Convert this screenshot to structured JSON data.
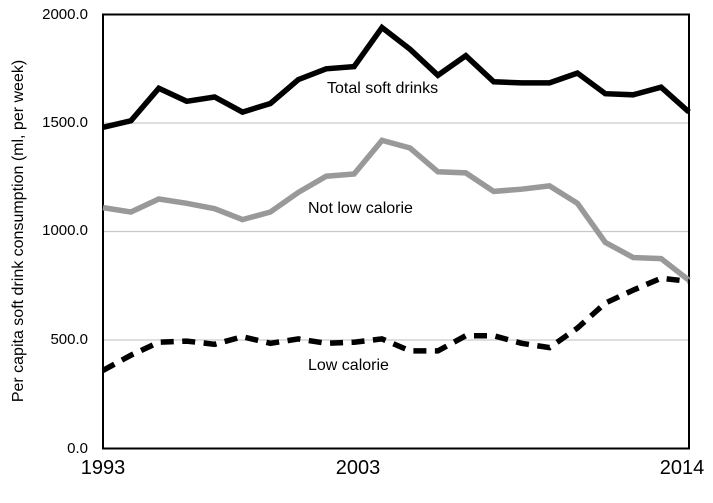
{
  "chart_data": {
    "type": "line",
    "title": "",
    "xlabel": "",
    "ylabel": "Per capita soft drink consumption (ml, per week)",
    "ylim": [
      0,
      2000
    ],
    "grid": "horizontal-gridlines",
    "legend_position": "inline-labels",
    "x": [
      1993,
      1994,
      1995,
      1996,
      1997,
      1998,
      1999,
      2000,
      2001,
      2002,
      2003,
      2004,
      2005,
      2006,
      2007,
      2008,
      2009,
      2010,
      2011,
      2012,
      2013,
      2014
    ],
    "xtick_labels": [
      "1993",
      "2003",
      "2014"
    ],
    "ytick_values": [
      0,
      500,
      1000,
      1500,
      2000
    ],
    "ytick_labels": [
      "0.0",
      "500.0",
      "1000.0",
      "1500.0",
      "2000.0"
    ],
    "series": [
      {
        "name": "Total soft drinks",
        "color": "#000000",
        "line_style": "solid",
        "values": [
          1480,
          1510,
          1660,
          1600,
          1620,
          1550,
          1590,
          1700,
          1750,
          1760,
          1940,
          1840,
          1720,
          1810,
          1690,
          1685,
          1685,
          1730,
          1635,
          1630,
          1665,
          1550
        ]
      },
      {
        "name": "Not low calorie",
        "color": "#999999",
        "line_style": "solid",
        "values": [
          1110,
          1090,
          1150,
          1130,
          1105,
          1055,
          1090,
          1180,
          1255,
          1265,
          1420,
          1385,
          1275,
          1270,
          1185,
          1195,
          1210,
          1130,
          950,
          880,
          875,
          775
        ]
      },
      {
        "name": "Low calorie",
        "color": "#000000",
        "line_style": "dashed",
        "values": [
          360,
          430,
          490,
          495,
          480,
          515,
          485,
          505,
          485,
          490,
          505,
          450,
          450,
          520,
          520,
          485,
          465,
          555,
          670,
          730,
          785,
          770
        ]
      }
    ],
    "colors": {
      "background": "#ffffff",
      "gridline": "#c9c9c9",
      "plot_border": "#000000",
      "text": "#000000"
    }
  }
}
